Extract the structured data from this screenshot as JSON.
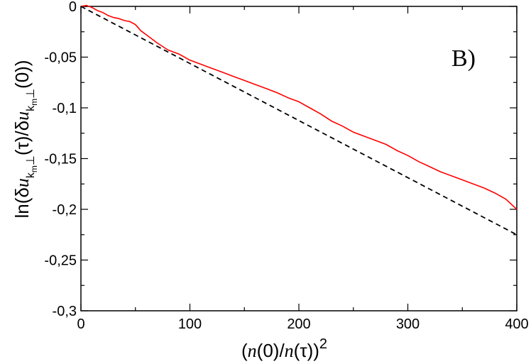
{
  "chart_data": {
    "type": "line",
    "title": "",
    "panel_label": "B)",
    "xlabel": "(n(0)/n(τ))²",
    "ylabel": "ln(δu_{k_m⊥}(τ)/δu_{k_m⊥}(0))",
    "xlim": [
      0,
      400
    ],
    "ylim": [
      -0.3,
      0
    ],
    "x_ticks": [
      0,
      100,
      200,
      300,
      400
    ],
    "x_tick_labels": [
      "0",
      "100",
      "200",
      "300",
      "400"
    ],
    "y_ticks": [
      0,
      -0.05,
      -0.1,
      -0.15,
      -0.2,
      -0.25,
      -0.3
    ],
    "y_tick_labels": [
      "0",
      "-0,05",
      "-0,1",
      "-0,15",
      "-0,2",
      "-0,25",
      "-0,3"
    ],
    "grid": false,
    "legend": "none",
    "series": [
      {
        "style": "solid",
        "color": "#ff0000",
        "x": [
          0,
          5,
          10,
          15,
          20,
          25,
          30,
          35,
          40,
          45,
          50,
          55,
          60,
          70,
          80,
          90,
          100,
          110,
          120,
          130,
          140,
          150,
          160,
          170,
          180,
          190,
          200,
          210,
          220,
          230,
          240,
          250,
          260,
          270,
          280,
          290,
          300,
          310,
          320,
          330,
          340,
          350,
          360,
          370,
          380,
          390,
          400
        ],
        "y": [
          0.0,
          0.001,
          -0.001,
          -0.004,
          -0.006,
          -0.009,
          -0.011,
          -0.012,
          -0.014,
          -0.015,
          -0.018,
          -0.024,
          -0.028,
          -0.036,
          -0.043,
          -0.047,
          -0.053,
          -0.057,
          -0.061,
          -0.065,
          -0.069,
          -0.073,
          -0.077,
          -0.081,
          -0.085,
          -0.09,
          -0.094,
          -0.1,
          -0.106,
          -0.113,
          -0.118,
          -0.124,
          -0.128,
          -0.132,
          -0.136,
          -0.142,
          -0.147,
          -0.153,
          -0.158,
          -0.163,
          -0.167,
          -0.171,
          -0.175,
          -0.179,
          -0.184,
          -0.19,
          -0.2
        ]
      },
      {
        "style": "dashed",
        "color": "#000000",
        "x": [
          0,
          400
        ],
        "y": [
          0,
          -0.225
        ]
      }
    ]
  }
}
